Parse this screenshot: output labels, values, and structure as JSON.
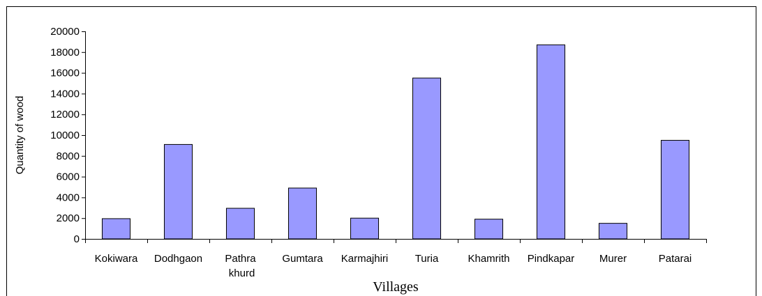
{
  "chart_data": {
    "type": "bar",
    "x_label": "Villages",
    "y_label": "Quantity of wood",
    "categories": [
      "Kokiwara",
      "Dodhgaon",
      "Pathra khurd",
      "Gumtara",
      "Karmajhiri",
      "Turia",
      "Khamrith",
      "Pindkapar",
      "Murer",
      "Patarai"
    ],
    "values": [
      1950,
      9100,
      2950,
      4900,
      2000,
      15500,
      1900,
      18700,
      1500,
      9500
    ],
    "color": "#9999ff",
    "ylim": [
      0,
      20000
    ],
    "yticks": [
      0,
      2000,
      4000,
      6000,
      8000,
      10000,
      12000,
      14000,
      16000,
      18000,
      20000
    ],
    "grid": false
  }
}
